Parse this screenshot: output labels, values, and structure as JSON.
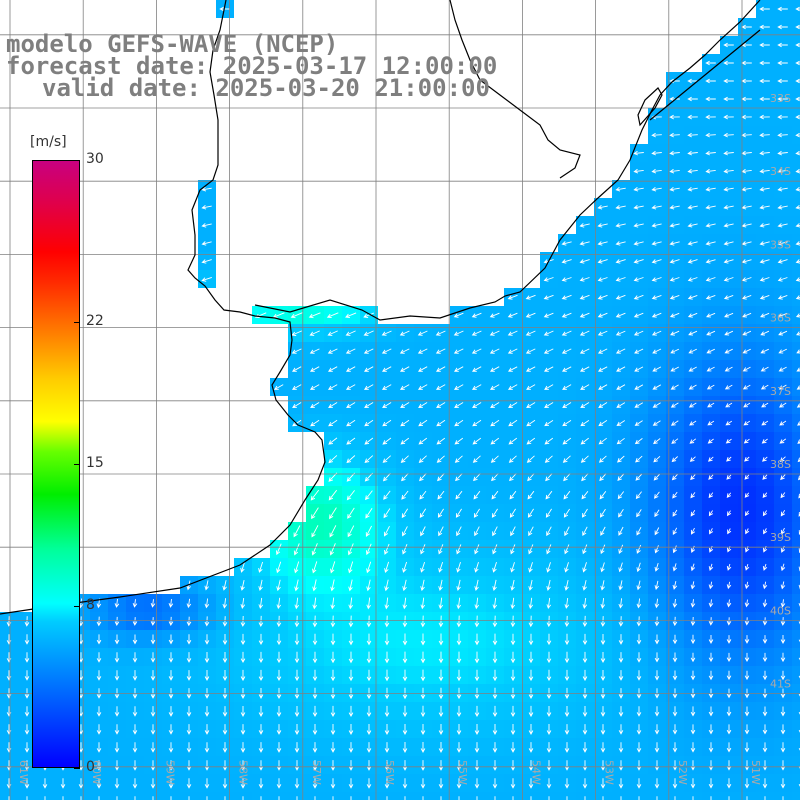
{
  "title": {
    "line1": "modelo GEFS-WAVE (NCEP)",
    "line2": "forecast date: 2025-03-17 12:00:00",
    "line3": "valid date: 2025-03-20 21:00:00"
  },
  "colorbar": {
    "unit": "[m/s]",
    "min": 0,
    "max": 30,
    "ticks": [
      "30",
      "22",
      "15",
      "8",
      "0"
    ],
    "tick_values": [
      30,
      22,
      15,
      8,
      0
    ]
  },
  "map": {
    "lon_range": [
      -62,
      -51.2
    ],
    "lat_range": [
      -41.6,
      -31.0
    ],
    "lon_labels": [
      "61W",
      "60W",
      "59W",
      "58W",
      "57W",
      "56W",
      "55W",
      "54W",
      "53W",
      "52W",
      "51W"
    ],
    "lat_labels": [
      "33S",
      "34S",
      "35S",
      "36S",
      "37S",
      "38S",
      "39S",
      "40S",
      "41S"
    ],
    "gridline_color": "#808080",
    "coast_color": "#000000",
    "field": "wind speed and direction"
  }
}
